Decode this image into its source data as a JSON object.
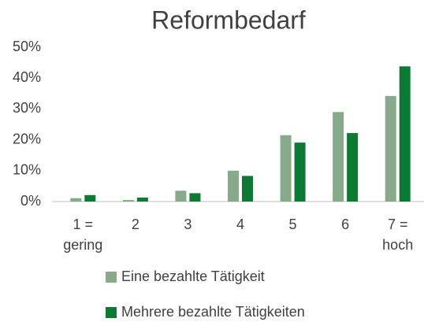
{
  "chart_data": {
    "type": "bar",
    "title": "Reformbedarf",
    "categories": [
      "1 = gering",
      "2",
      "3",
      "4",
      "5",
      "6",
      "7 = hoch"
    ],
    "series": [
      {
        "name": "Eine bezahlte Tätigkeit",
        "color": "#87aa8a",
        "values": [
          1.1,
          0.5,
          3.5,
          10,
          21.5,
          29,
          34.2
        ]
      },
      {
        "name": "Mehrere bezahlte Tätigkeiten",
        "color": "#0d7a33",
        "values": [
          2.1,
          1.3,
          2.7,
          8.3,
          19.1,
          22.2,
          43.8
        ]
      }
    ],
    "ylim": [
      0,
      50
    ],
    "yticks": [
      {
        "value": 0,
        "label": "0%"
      },
      {
        "value": 10,
        "label": "10%"
      },
      {
        "value": 20,
        "label": "20%"
      },
      {
        "value": 30,
        "label": "30%"
      },
      {
        "value": 40,
        "label": "40%"
      },
      {
        "value": 50,
        "label": "50%"
      }
    ],
    "grid": false,
    "legend": "bottom"
  }
}
